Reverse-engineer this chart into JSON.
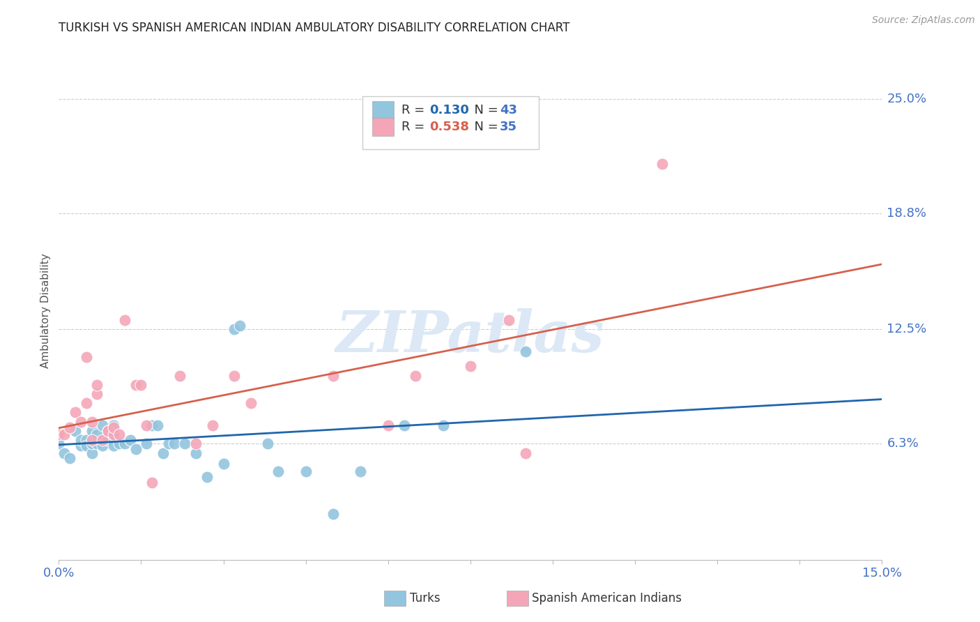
{
  "title": "TURKISH VS SPANISH AMERICAN INDIAN AMBULATORY DISABILITY CORRELATION CHART",
  "source": "Source: ZipAtlas.com",
  "ylabel": "Ambulatory Disability",
  "watermark": "ZIPatlas",
  "xlim": [
    0.0,
    0.15
  ],
  "ylim": [
    0.0,
    0.27
  ],
  "ytick_values": [
    0.063,
    0.125,
    0.188,
    0.25
  ],
  "ytick_labels": [
    "6.3%",
    "12.5%",
    "18.8%",
    "25.0%"
  ],
  "blue_color": "#92c5de",
  "pink_color": "#f4a6b8",
  "blue_line_color": "#2166ac",
  "pink_line_color": "#d6604d",
  "title_color": "#222222",
  "axis_label_color": "#555555",
  "tick_color": "#4472C4",
  "grid_color": "#cccccc",
  "watermark_color": "#dce8f5",
  "turks_x": [
    0.0,
    0.001,
    0.002,
    0.003,
    0.004,
    0.004,
    0.005,
    0.005,
    0.006,
    0.006,
    0.006,
    0.007,
    0.007,
    0.008,
    0.008,
    0.009,
    0.01,
    0.01,
    0.01,
    0.011,
    0.012,
    0.013,
    0.014,
    0.016,
    0.017,
    0.018,
    0.019,
    0.02,
    0.021,
    0.023,
    0.025,
    0.027,
    0.03,
    0.032,
    0.033,
    0.038,
    0.04,
    0.045,
    0.05,
    0.055,
    0.063,
    0.07,
    0.085
  ],
  "turks_y": [
    0.063,
    0.058,
    0.055,
    0.07,
    0.062,
    0.065,
    0.065,
    0.062,
    0.058,
    0.07,
    0.063,
    0.063,
    0.068,
    0.062,
    0.073,
    0.065,
    0.062,
    0.073,
    0.068,
    0.063,
    0.063,
    0.065,
    0.06,
    0.063,
    0.073,
    0.073,
    0.058,
    0.063,
    0.063,
    0.063,
    0.058,
    0.045,
    0.052,
    0.125,
    0.127,
    0.063,
    0.048,
    0.048,
    0.025,
    0.048,
    0.073,
    0.073,
    0.113
  ],
  "spanish_x": [
    0.0,
    0.001,
    0.002,
    0.003,
    0.004,
    0.005,
    0.005,
    0.006,
    0.006,
    0.007,
    0.007,
    0.008,
    0.009,
    0.009,
    0.01,
    0.01,
    0.011,
    0.012,
    0.014,
    0.015,
    0.016,
    0.017,
    0.022,
    0.025,
    0.028,
    0.032,
    0.035,
    0.05,
    0.06,
    0.065,
    0.075,
    0.082,
    0.085,
    0.11
  ],
  "spanish_y": [
    0.068,
    0.068,
    0.072,
    0.08,
    0.075,
    0.11,
    0.085,
    0.075,
    0.065,
    0.09,
    0.095,
    0.065,
    0.07,
    0.07,
    0.068,
    0.072,
    0.068,
    0.13,
    0.095,
    0.095,
    0.073,
    0.042,
    0.1,
    0.063,
    0.073,
    0.1,
    0.085,
    0.1,
    0.073,
    0.1,
    0.105,
    0.13,
    0.058,
    0.215
  ]
}
